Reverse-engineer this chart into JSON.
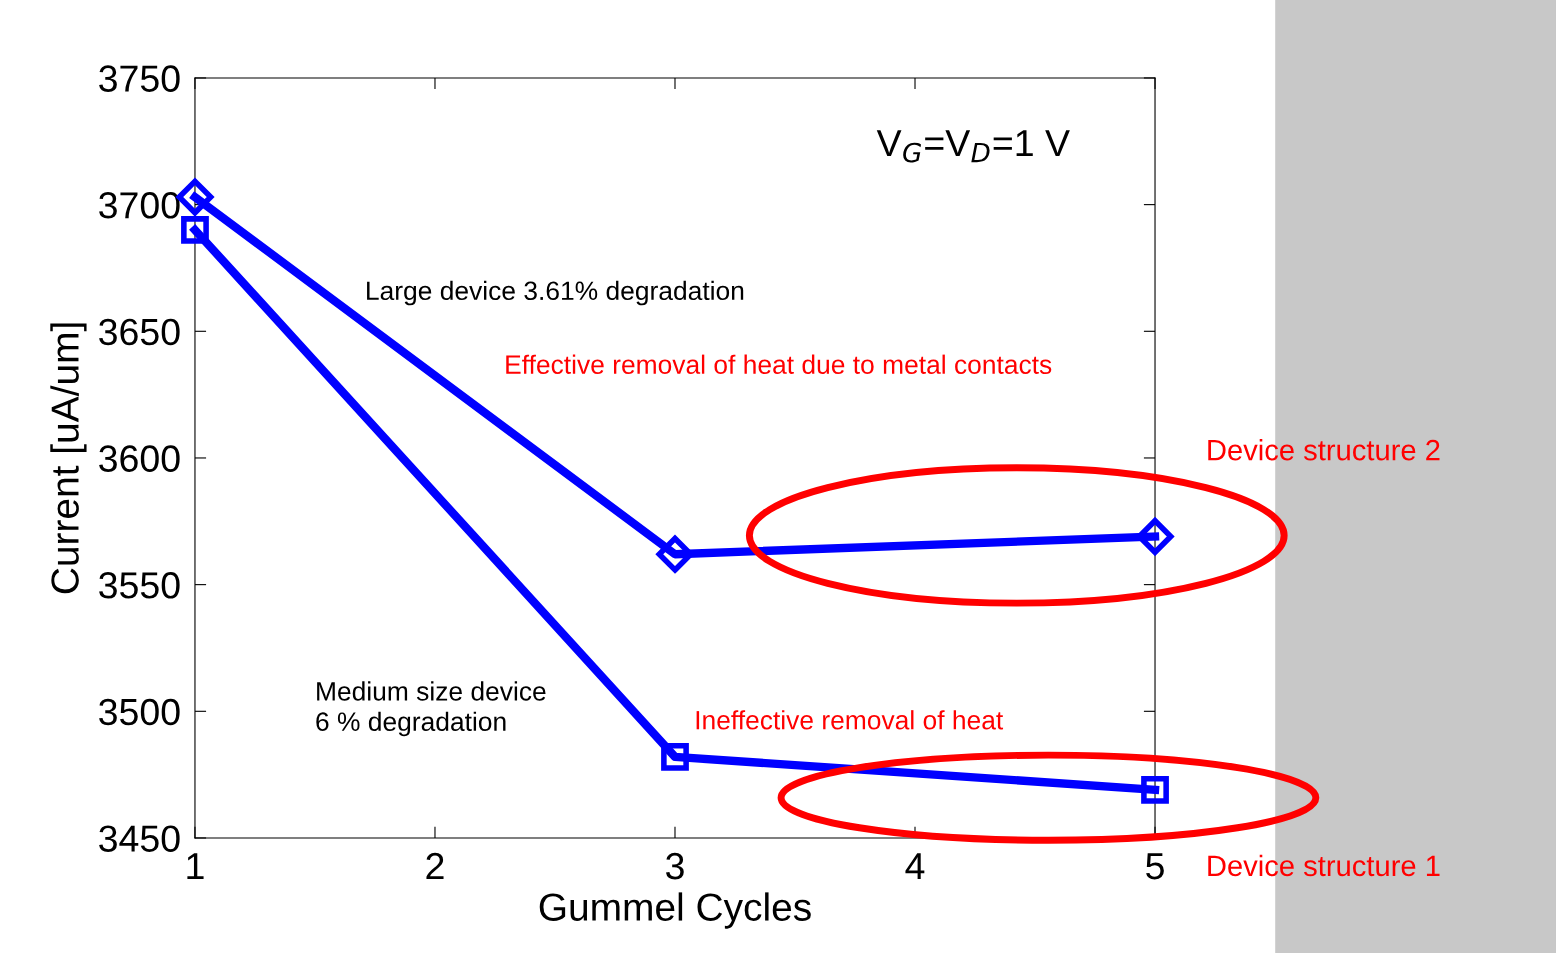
{
  "chart_data": {
    "type": "line",
    "xlabel": "Gummel Cycles",
    "ylabel": "Current [uA/um]",
    "x": [
      1,
      3,
      5
    ],
    "series": [
      {
        "color": "#0000ff",
        "marker": "diamond",
        "values": [
          3703,
          3562,
          3569
        ]
      },
      {
        "color": "#0000ff",
        "marker": "square",
        "values": [
          3690,
          3482,
          3469
        ]
      }
    ],
    "xlim": [
      1,
      5
    ],
    "xticks": [
      1,
      2,
      3,
      4,
      5
    ],
    "ylim": [
      3450,
      3750
    ],
    "yticks": [
      3450,
      3500,
      3550,
      3600,
      3650,
      3700,
      3750
    ],
    "grid": false,
    "legend": false,
    "line_style": "solid",
    "annotations": [
      "V$_{G}$=V$_{D}$=1 V",
      "Large device 3.61% degradation",
      "Effective removal of heat due to metal contacts",
      "Medium size device\n6 % degradation",
      "Ineffective removal of heat",
      "Device structure 2",
      "Device structure 1"
    ]
  }
}
